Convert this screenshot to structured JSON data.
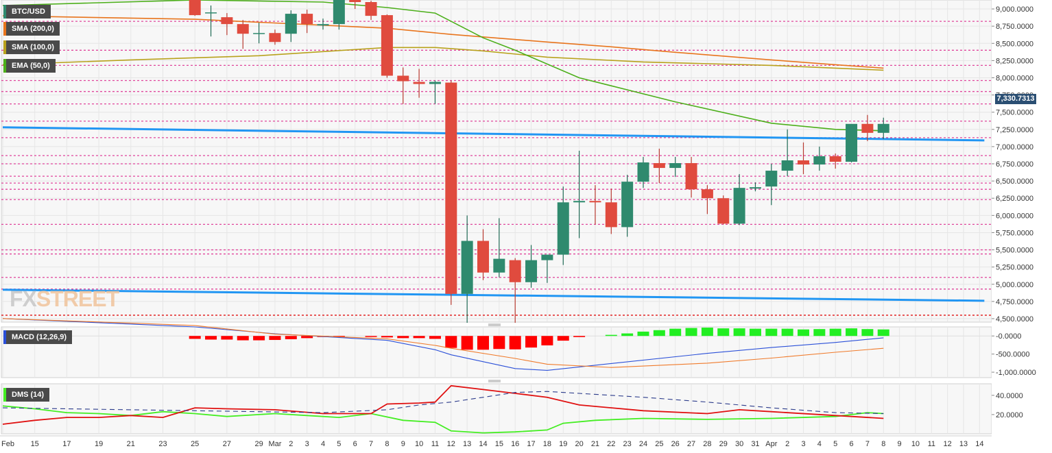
{
  "labels": {
    "symbol": "BTC/USD",
    "sma200": "SMA (200,0)",
    "sma100": "SMA (100,0)",
    "ema50": "EMA (50,0)",
    "macd": "MACD (12,26,9)",
    "dms": "DMS (14)",
    "last_price": "7,330.7313",
    "watermark_fx": "FX",
    "watermark_street": "STREET"
  },
  "colors": {
    "bull": "#2f8a6e",
    "bear": "#e04b3e",
    "sma200": "#e8741c",
    "sma100": "#b8a21c",
    "ema50": "#4caf1a",
    "trend": "#2196f3",
    "level": "#e0449b",
    "macd_line": "#2a4fd8",
    "macd_signal": "#f07a2a",
    "hist_neg": "#ff0000",
    "hist_pos": "#22ee22",
    "di_plus": "#44ee22",
    "di_minus": "#e01010",
    "adx": "#2a3a8a"
  },
  "chart_data": [
    {
      "type": "candlestick",
      "title": "BTC/USD",
      "ylim": [
        4450,
        9130
      ],
      "y_ticks": [
        4500,
        4750,
        5000,
        5250,
        5500,
        5750,
        6000,
        6250,
        6500,
        6750,
        7000,
        7250,
        7500,
        7750,
        8000,
        8250,
        8500,
        8750,
        9000
      ],
      "y_tick_labels": [
        "4,500.0000",
        "4,750.0000",
        "5,000.0000",
        "5,250.0000",
        "5,500.0000",
        "5,750.0000",
        "6,000.0000",
        "6,250.0000",
        "6,500.0000",
        "6,750.0000",
        "7,000.0000",
        "7,250.0000",
        "7,500.0000",
        "7,750.0000",
        "8,000.0000",
        "8,250.0000",
        "8,500.0000",
        "8,750.0000",
        "9,000.0000"
      ],
      "x_labels": [
        {
          "i": 0,
          "t": "Feb"
        },
        {
          "i": 2,
          "t": "15"
        },
        {
          "i": 4,
          "t": "17"
        },
        {
          "i": 6,
          "t": "19"
        },
        {
          "i": 8,
          "t": "21"
        },
        {
          "i": 10,
          "t": "23"
        },
        {
          "i": 12,
          "t": "25"
        },
        {
          "i": 14,
          "t": "27"
        },
        {
          "i": 16,
          "t": "29"
        },
        {
          "i": 17,
          "t": "Mar"
        },
        {
          "i": 18,
          "t": "2"
        },
        {
          "i": 19,
          "t": "3"
        },
        {
          "i": 20,
          "t": "4"
        },
        {
          "i": 21,
          "t": "5"
        },
        {
          "i": 22,
          "t": "6"
        },
        {
          "i": 23,
          "t": "7"
        },
        {
          "i": 24,
          "t": "8"
        },
        {
          "i": 25,
          "t": "9"
        },
        {
          "i": 26,
          "t": "10"
        },
        {
          "i": 27,
          "t": "11"
        },
        {
          "i": 28,
          "t": "12"
        },
        {
          "i": 29,
          "t": "13"
        },
        {
          "i": 30,
          "t": "14"
        },
        {
          "i": 31,
          "t": "15"
        },
        {
          "i": 32,
          "t": "16"
        },
        {
          "i": 33,
          "t": "17"
        },
        {
          "i": 34,
          "t": "18"
        },
        {
          "i": 35,
          "t": "19"
        },
        {
          "i": 36,
          "t": "20"
        },
        {
          "i": 37,
          "t": "21"
        },
        {
          "i": 38,
          "t": "22"
        },
        {
          "i": 39,
          "t": "23"
        },
        {
          "i": 40,
          "t": "24"
        },
        {
          "i": 41,
          "t": "25"
        },
        {
          "i": 42,
          "t": "26"
        },
        {
          "i": 43,
          "t": "27"
        },
        {
          "i": 44,
          "t": "28"
        },
        {
          "i": 45,
          "t": "29"
        },
        {
          "i": 46,
          "t": "30"
        },
        {
          "i": 47,
          "t": "31"
        },
        {
          "i": 48,
          "t": "Apr"
        },
        {
          "i": 49,
          "t": "2"
        },
        {
          "i": 50,
          "t": "3"
        },
        {
          "i": 51,
          "t": "4"
        },
        {
          "i": 52,
          "t": "5"
        },
        {
          "i": 53,
          "t": "6"
        },
        {
          "i": 54,
          "t": "7"
        },
        {
          "i": 55,
          "t": "8"
        },
        {
          "i": 56,
          "t": "9"
        },
        {
          "i": 57,
          "t": "10"
        },
        {
          "i": 58,
          "t": "11"
        },
        {
          "i": 59,
          "t": "12"
        },
        {
          "i": 60,
          "t": "13"
        },
        {
          "i": 61,
          "t": "14"
        }
      ],
      "candles": [
        {
          "i": 12,
          "o": 9220,
          "h": 9300,
          "l": 8900,
          "c": 8910
        },
        {
          "i": 13,
          "o": 8940,
          "h": 9050,
          "l": 8600,
          "c": 8950
        },
        {
          "i": 14,
          "o": 8880,
          "h": 8940,
          "l": 8620,
          "c": 8780
        },
        {
          "i": 15,
          "o": 8780,
          "h": 8840,
          "l": 8420,
          "c": 8640
        },
        {
          "i": 16,
          "o": 8640,
          "h": 8800,
          "l": 8500,
          "c": 8650
        },
        {
          "i": 17,
          "o": 8650,
          "h": 8700,
          "l": 8480,
          "c": 8520
        },
        {
          "i": 18,
          "o": 8640,
          "h": 8980,
          "l": 8520,
          "c": 8930
        },
        {
          "i": 19,
          "o": 8930,
          "h": 8990,
          "l": 8650,
          "c": 8780
        },
        {
          "i": 20,
          "o": 8760,
          "h": 8860,
          "l": 8700,
          "c": 8780
        },
        {
          "i": 21,
          "o": 8780,
          "h": 9180,
          "l": 8700,
          "c": 9150
        },
        {
          "i": 22,
          "o": 9160,
          "h": 9220,
          "l": 9000,
          "c": 9100
        },
        {
          "i": 23,
          "o": 9100,
          "h": 9120,
          "l": 8840,
          "c": 8900
        },
        {
          "i": 24,
          "o": 8910,
          "h": 8920,
          "l": 8000,
          "c": 8030
        },
        {
          "i": 25,
          "o": 8030,
          "h": 8150,
          "l": 7620,
          "c": 7950
        },
        {
          "i": 26,
          "o": 7940,
          "h": 8130,
          "l": 7710,
          "c": 7910
        },
        {
          "i": 27,
          "o": 7910,
          "h": 7960,
          "l": 7620,
          "c": 7940
        },
        {
          "i": 28,
          "o": 7930,
          "h": 7960,
          "l": 4700,
          "c": 4860
        },
        {
          "i": 29,
          "o": 4860,
          "h": 6000,
          "l": 4440,
          "c": 5630
        },
        {
          "i": 30,
          "o": 5630,
          "h": 5800,
          "l": 5060,
          "c": 5170
        },
        {
          "i": 31,
          "o": 5170,
          "h": 5960,
          "l": 5100,
          "c": 5370
        },
        {
          "i": 32,
          "o": 5350,
          "h": 5380,
          "l": 4440,
          "c": 5030
        },
        {
          "i": 33,
          "o": 5030,
          "h": 5570,
          "l": 4950,
          "c": 5350
        },
        {
          "i": 34,
          "o": 5350,
          "h": 5420,
          "l": 5020,
          "c": 5430
        },
        {
          "i": 35,
          "o": 5430,
          "h": 6420,
          "l": 5280,
          "c": 6190
        },
        {
          "i": 36,
          "o": 6190,
          "h": 6940,
          "l": 5670,
          "c": 6210
        },
        {
          "i": 37,
          "o": 6210,
          "h": 6440,
          "l": 5870,
          "c": 6190
        },
        {
          "i": 38,
          "o": 6190,
          "h": 6390,
          "l": 5730,
          "c": 5830
        },
        {
          "i": 39,
          "o": 5830,
          "h": 6590,
          "l": 5690,
          "c": 6490
        },
        {
          "i": 40,
          "o": 6490,
          "h": 6850,
          "l": 6400,
          "c": 6770
        },
        {
          "i": 41,
          "o": 6760,
          "h": 6970,
          "l": 6470,
          "c": 6690
        },
        {
          "i": 42,
          "o": 6690,
          "h": 6850,
          "l": 6560,
          "c": 6760
        },
        {
          "i": 43,
          "o": 6760,
          "h": 6850,
          "l": 6260,
          "c": 6380
        },
        {
          "i": 44,
          "o": 6380,
          "h": 6440,
          "l": 6020,
          "c": 6250
        },
        {
          "i": 45,
          "o": 6250,
          "h": 6290,
          "l": 5870,
          "c": 5880
        },
        {
          "i": 46,
          "o": 5880,
          "h": 6600,
          "l": 5860,
          "c": 6400
        },
        {
          "i": 47,
          "o": 6390,
          "h": 6480,
          "l": 6350,
          "c": 6410
        },
        {
          "i": 48,
          "o": 6420,
          "h": 6750,
          "l": 6150,
          "c": 6650
        },
        {
          "i": 49,
          "o": 6650,
          "h": 7250,
          "l": 6570,
          "c": 6800
        },
        {
          "i": 50,
          "o": 6800,
          "h": 7060,
          "l": 6600,
          "c": 6740
        },
        {
          "i": 51,
          "o": 6740,
          "h": 7000,
          "l": 6650,
          "c": 6860
        },
        {
          "i": 52,
          "o": 6860,
          "h": 6900,
          "l": 6680,
          "c": 6780
        },
        {
          "i": 53,
          "o": 6780,
          "h": 7300,
          "l": 6770,
          "c": 7330
        },
        {
          "i": 54,
          "o": 7330,
          "h": 7460,
          "l": 7080,
          "c": 7200
        },
        {
          "i": 55,
          "o": 7200,
          "h": 7420,
          "l": 7110,
          "c": 7330
        }
      ],
      "levels": [
        4550,
        4930,
        5100,
        5440,
        5500,
        5870,
        6230,
        6380,
        6470,
        6570,
        6750,
        6870,
        7130,
        7370,
        7620,
        7800,
        7960,
        8180,
        8400,
        8820
      ],
      "trendlines": [
        {
          "from": {
            "i": 0,
            "v": 7280
          },
          "to": {
            "i": 61.3,
            "v": 7090
          }
        },
        {
          "from": {
            "i": 0,
            "v": 4920
          },
          "to": {
            "i": 61.3,
            "v": 4760
          }
        }
      ],
      "sma200": [
        [
          0,
          8900
        ],
        [
          12,
          8850
        ],
        [
          24,
          8720
        ],
        [
          28,
          8630
        ],
        [
          34,
          8520
        ],
        [
          38,
          8450
        ],
        [
          42,
          8370
        ],
        [
          48,
          8260
        ],
        [
          52,
          8190
        ],
        [
          55,
          8140
        ]
      ],
      "sma100": [
        [
          0,
          8190
        ],
        [
          8,
          8260
        ],
        [
          16,
          8320
        ],
        [
          20,
          8380
        ],
        [
          24,
          8440
        ],
        [
          27,
          8440
        ],
        [
          30,
          8390
        ],
        [
          34,
          8300
        ],
        [
          40,
          8230
        ],
        [
          48,
          8180
        ],
        [
          55,
          8110
        ]
      ],
      "ema50": [
        [
          0,
          9050
        ],
        [
          12,
          9130
        ],
        [
          20,
          9100
        ],
        [
          24,
          9020
        ],
        [
          27,
          8940
        ],
        [
          30,
          8580
        ],
        [
          32,
          8400
        ],
        [
          36,
          8000
        ],
        [
          42,
          7650
        ],
        [
          48,
          7340
        ],
        [
          52,
          7250
        ],
        [
          55,
          7230
        ]
      ]
    },
    {
      "type": "line",
      "title": "MACD (12,26,9)",
      "ylim": [
        -1150,
        250
      ],
      "y_ticks": [
        0,
        -500,
        -1000
      ],
      "y_tick_labels": [
        "-0.0000",
        "-500.0000",
        "-1,000.0000"
      ],
      "histogram": [
        0,
        0,
        0,
        0,
        0,
        0,
        0,
        0,
        0,
        0,
        0,
        0,
        -80,
        -100,
        -100,
        -120,
        -120,
        -110,
        -90,
        -60,
        -30,
        -20,
        0,
        -10,
        -40,
        -60,
        -60,
        -80,
        -330,
        -380,
        -380,
        -360,
        -370,
        -320,
        -260,
        -130,
        -30,
        0,
        30,
        70,
        120,
        160,
        200,
        220,
        230,
        210,
        210,
        200,
        200,
        200,
        180,
        190,
        200,
        210,
        190,
        180
      ],
      "macd": [
        [
          0,
          480
        ],
        [
          12,
          250
        ],
        [
          17,
          60
        ],
        [
          24,
          -120
        ],
        [
          27,
          -380
        ],
        [
          28,
          -520
        ],
        [
          32,
          -900
        ],
        [
          34,
          -950
        ],
        [
          38,
          -760
        ],
        [
          44,
          -480
        ],
        [
          48,
          -320
        ],
        [
          52,
          -180
        ],
        [
          55,
          -50
        ]
      ],
      "signal": [
        [
          0,
          480
        ],
        [
          12,
          290
        ],
        [
          17,
          50
        ],
        [
          24,
          -80
        ],
        [
          27,
          -260
        ],
        [
          28,
          -340
        ],
        [
          32,
          -620
        ],
        [
          34,
          -780
        ],
        [
          38,
          -870
        ],
        [
          44,
          -750
        ],
        [
          48,
          -610
        ],
        [
          52,
          -450
        ],
        [
          55,
          -340
        ]
      ]
    },
    {
      "type": "line",
      "title": "DMS (14)",
      "ylim": [
        0,
        52
      ],
      "y_ticks": [
        40,
        20
      ],
      "y_tick_labels": [
        "40.0000",
        "20.0000"
      ],
      "series": [
        {
          "key": "di_plus",
          "points": [
            [
              0,
              29
            ],
            [
              2,
              26
            ],
            [
              4,
              22
            ],
            [
              6,
              21
            ],
            [
              8,
              19
            ],
            [
              10,
              23
            ],
            [
              12,
              21
            ],
            [
              14,
              18
            ],
            [
              17,
              21
            ],
            [
              19,
              19
            ],
            [
              21,
              17
            ],
            [
              23,
              21
            ],
            [
              25,
              14
            ],
            [
              27,
              12
            ],
            [
              28,
              3
            ],
            [
              30,
              1
            ],
            [
              32,
              2
            ],
            [
              34,
              4
            ],
            [
              35,
              11
            ],
            [
              37,
              14
            ],
            [
              40,
              16
            ],
            [
              44,
              15
            ],
            [
              48,
              16
            ],
            [
              52,
              18
            ],
            [
              54,
              22
            ],
            [
              55,
              21
            ]
          ]
        },
        {
          "key": "di_minus",
          "points": [
            [
              0,
              10
            ],
            [
              2,
              14
            ],
            [
              4,
              17
            ],
            [
              6,
              17
            ],
            [
              8,
              19
            ],
            [
              10,
              17
            ],
            [
              12,
              27
            ],
            [
              14,
              26
            ],
            [
              17,
              25
            ],
            [
              20,
              21
            ],
            [
              23,
              21
            ],
            [
              24,
              31
            ],
            [
              26,
              32
            ],
            [
              27,
              33
            ],
            [
              28,
              50
            ],
            [
              30,
              46
            ],
            [
              32,
              42
            ],
            [
              34,
              38
            ],
            [
              36,
              30
            ],
            [
              40,
              24
            ],
            [
              44,
              21
            ],
            [
              46,
              25
            ],
            [
              48,
              23
            ],
            [
              52,
              19
            ],
            [
              55,
              16
            ]
          ]
        },
        {
          "key": "adx",
          "points": [
            [
              0,
              27
            ],
            [
              4,
              26
            ],
            [
              8,
              25
            ],
            [
              12,
              24
            ],
            [
              16,
              23
            ],
            [
              20,
              22
            ],
            [
              24,
              25
            ],
            [
              26,
              30
            ],
            [
              28,
              33
            ],
            [
              30,
              38
            ],
            [
              32,
              43
            ],
            [
              34,
              44
            ],
            [
              36,
              42
            ],
            [
              40,
              38
            ],
            [
              44,
              33
            ],
            [
              48,
              27
            ],
            [
              52,
              22
            ],
            [
              55,
              21
            ]
          ]
        }
      ]
    }
  ]
}
